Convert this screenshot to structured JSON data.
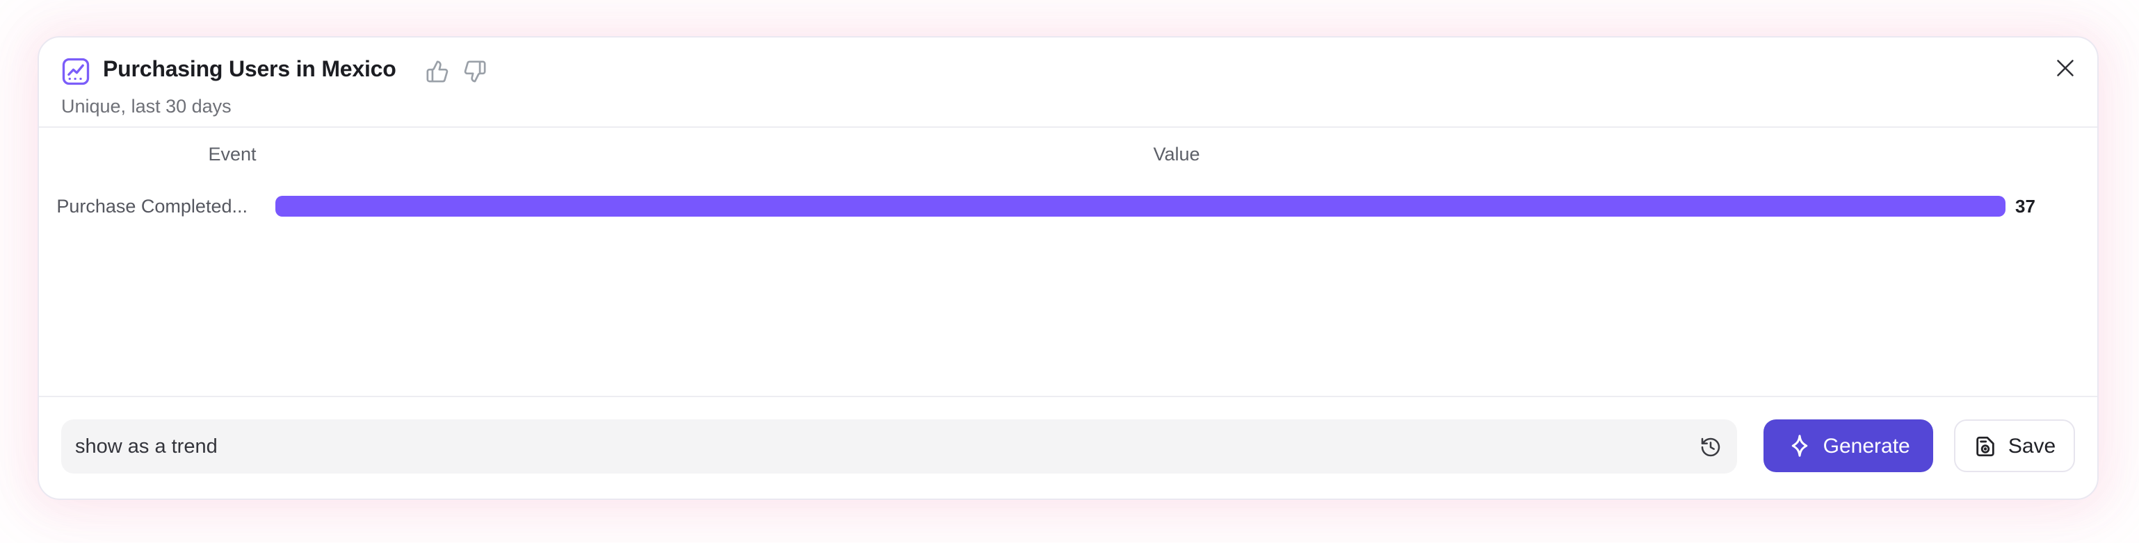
{
  "header": {
    "title": "Purchasing Users in Mexico",
    "subtitle": "Unique, last 30 days"
  },
  "chart_data": {
    "type": "bar",
    "orientation": "horizontal",
    "title": "Purchasing Users in Mexico",
    "subtitle": "Unique, last 30 days",
    "columns": {
      "event": "Event",
      "value": "Value"
    },
    "rows": [
      {
        "event": "Purchase Completed...",
        "value": 37
      }
    ],
    "max_value": 37,
    "xlim": [
      0,
      37
    ],
    "grid": false,
    "legend": false,
    "bar_color": "#7857fd"
  },
  "footer": {
    "input_value": "show as a trend",
    "generate_label": "Generate",
    "save_label": "Save"
  },
  "icons": {
    "title_icon": "line-chart-icon",
    "feedback": [
      "thumbs-up-icon",
      "thumbs-down-icon"
    ],
    "close": "close-icon",
    "input_right": "history-icon",
    "generate": "sparkle-icon",
    "save": "save-icon"
  },
  "colors": {
    "bar": "#7857fd",
    "accent_button": "#5447d6",
    "title_icon": "#7b5df9",
    "input_background": "#f4f4f5",
    "glow": "#eb5f96"
  }
}
